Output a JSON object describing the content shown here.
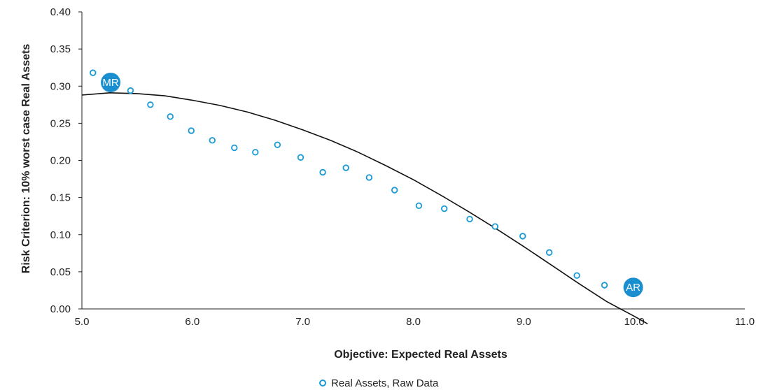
{
  "chart_data": {
    "type": "scatter",
    "title": "",
    "xlabel": "Objective: Expected Real Assets",
    "ylabel": "Risk Criterion: 10% worst case Real Assets",
    "xlim": [
      5.0,
      11.0
    ],
    "ylim": [
      0.0,
      0.4
    ],
    "xticks": [
      "5.0",
      "6.0",
      "7.0",
      "8.0",
      "9.0",
      "10.0",
      "11.0"
    ],
    "yticks": [
      "0.00",
      "0.05",
      "0.10",
      "0.15",
      "0.20",
      "0.25",
      "0.30",
      "0.35",
      "0.40"
    ],
    "grid": false,
    "legend_position": "bottom",
    "series": [
      {
        "name": "Real Assets, Raw Data",
        "marker": "hollow-circle",
        "color": "#1a9ad6",
        "x": [
          5.1,
          5.44,
          5.62,
          5.8,
          5.99,
          6.18,
          6.38,
          6.57,
          6.77,
          6.98,
          7.18,
          7.39,
          7.6,
          7.83,
          8.05,
          8.28,
          8.51,
          8.74,
          8.99,
          9.23,
          9.48,
          9.73
        ],
        "y": [
          0.318,
          0.294,
          0.275,
          0.259,
          0.24,
          0.227,
          0.217,
          0.211,
          0.221,
          0.204,
          0.184,
          0.19,
          0.177,
          0.16,
          0.139,
          0.135,
          0.121,
          0.111,
          0.098,
          0.076,
          0.045,
          0.032
        ]
      }
    ],
    "fit_curve": {
      "color": "#111111",
      "x": [
        5.0,
        5.25,
        5.5,
        5.75,
        6.0,
        6.25,
        6.5,
        6.75,
        7.0,
        7.25,
        7.5,
        7.75,
        8.0,
        8.25,
        8.5,
        8.75,
        9.0,
        9.25,
        9.5,
        9.75,
        10.0,
        10.12
      ],
      "y": [
        0.288,
        0.291,
        0.29,
        0.287,
        0.281,
        0.274,
        0.265,
        0.254,
        0.241,
        0.227,
        0.211,
        0.193,
        0.174,
        0.153,
        0.131,
        0.108,
        0.084,
        0.059,
        0.034,
        0.01,
        -0.01,
        -0.02
      ]
    },
    "annotations": [
      {
        "label": "MR",
        "x": 5.26,
        "y": 0.305,
        "color": "#1a8fd0"
      },
      {
        "label": "AR",
        "x": 9.99,
        "y": 0.029,
        "color": "#1a8fd0"
      }
    ]
  }
}
